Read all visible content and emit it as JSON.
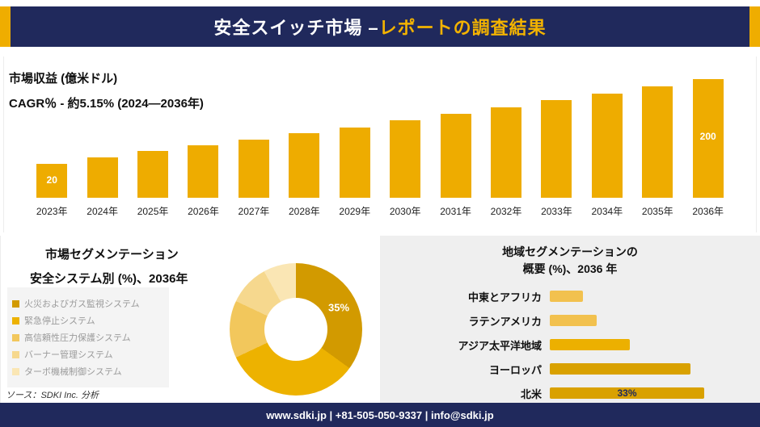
{
  "header": {
    "title_main": "安全スイッチ市場 –",
    "title_accent": "レポートの調査結果"
  },
  "source": "ソース：SDKI Inc. 分析",
  "footer": {
    "text": "www.sdki.jp | +81-505-050-9337 | info@sdki.jp"
  },
  "colors": {
    "navy": "#20295C",
    "gold": "#EEAC00",
    "accent_gold": "#F3B300",
    "panel_gray": "#EFEFEF"
  },
  "chart_data": [
    {
      "id": "market-revenue",
      "type": "bar",
      "title": "市場収益 (億米ドル)",
      "subtitle": "CAGR％ - 約5.15% (2024―2036年)",
      "categories": [
        "2023年",
        "2024年",
        "2025年",
        "2026年",
        "2027年",
        "2028年",
        "2029年",
        "2030年",
        "2031年",
        "2032年",
        "2033年",
        "2034年",
        "2035年",
        "2036年"
      ],
      "values": [
        20,
        35,
        48,
        60,
        72,
        85,
        98,
        112,
        126,
        140,
        155,
        170,
        185,
        200
      ],
      "data_labels": {
        "first": "20",
        "last": "200"
      },
      "bar_color": "#EEAC00",
      "legend_position": "none",
      "grid": false
    },
    {
      "id": "safety-system-segmentation",
      "type": "pie",
      "title": "市場セグメンテーション",
      "subtitle": "安全システム別 (%)、2036年",
      "labels": [
        "火災およびガス監視システム",
        "緊急停止システム",
        "高信頼性圧力保護システム",
        "バーナー管理システム",
        "ターボ機械制御システム"
      ],
      "values": [
        35,
        33,
        14,
        10,
        8
      ],
      "colors": [
        "#D29A00",
        "#EDB200",
        "#F2C75C",
        "#F6D88E",
        "#FAE6B4"
      ],
      "annotation": "35%",
      "legend_position": "left"
    },
    {
      "id": "regional-segmentation",
      "type": "bar",
      "orientation": "horizontal",
      "title": "地域セグメンテーションの",
      "subtitle": "概要 (%)、2036 年",
      "categories": [
        "中東とアフリカ",
        "ラテンアメリカ",
        "アジア太平洋地域",
        "ヨーロッパ",
        "北米"
      ],
      "values": [
        7,
        10,
        17,
        30,
        33
      ],
      "colors": [
        "#F2C14E",
        "#F2C14E",
        "#ECB000",
        "#D9A100",
        "#D9A100"
      ],
      "data_label": {
        "category": "北米",
        "text": "33%"
      },
      "grid": false
    }
  ]
}
